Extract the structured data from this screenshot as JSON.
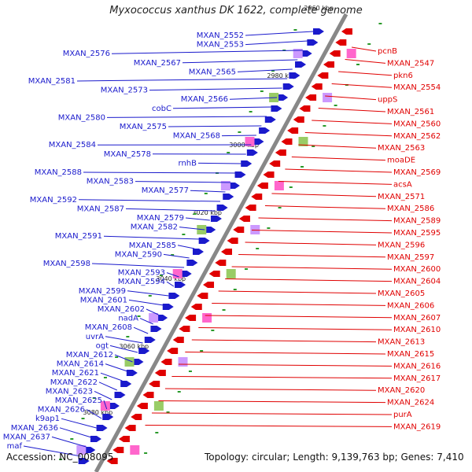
{
  "title": "Myxococcus xanthus DK 1622, complete genome",
  "accession_text": "Accession: NC_008095",
  "topology_text": "Topology: circular; Length: 9,139,763 bp; Genes: 7,410",
  "kbp_marks": [
    "2960 kbp",
    "2980 kbp",
    "3000 kbp",
    "3020 kbp",
    "3040 kbp",
    "3060 kbp",
    "3080 kbp"
  ],
  "left_labels": [
    "MXAN_2552",
    "MXAN_2553",
    "MXAN_2576",
    "MXAN_2567",
    "MXAN_2565",
    "MXAN_2581",
    "MXAN_2573",
    "MXAN_2566",
    "cobC",
    "MXAN_2580",
    "MXAN_2575",
    "MXAN_2568",
    "MXAN_2584",
    "MXAN_2578",
    "rnhB",
    "MXAN_2588",
    "MXAN_2583",
    "MXAN_2577",
    "MXAN_2592",
    "MXAN_2587",
    "MXAN_2579",
    "MXAN_2582",
    "MXAN_2591",
    "MXAN_2585",
    "MXAN_2590",
    "MXAN_2598",
    "MXAN_2593",
    "MXAN_2594",
    "MXAN_2599",
    "MXAN_2601",
    "MXAN_2602",
    "nadA",
    "MXAN_2608",
    "uvrA",
    "ogt",
    "MXAN_2612",
    "MXAN_2614",
    "MXAN_2621",
    "MXAN_2622",
    "MXAN_2623",
    "MXAN_2625",
    "MXAN_2626",
    "k9ap1",
    "MXAN_2636",
    "MXAN_2637",
    "maf"
  ],
  "right_labels": [
    "pcnB",
    "MXAN_2547",
    "pkn6",
    "MXAN_2554",
    "uppS",
    "MXAN_2561",
    "MXAN_2560",
    "MXAN_2562",
    "MXAN_2563",
    "moaDE",
    "MXAN_2569",
    "acsA",
    "MXAN_2571",
    "MXAN_2586",
    "MXAN_2589",
    "MXAN_2595",
    "MXAN_2596",
    "MXAN_2597",
    "MXAN_2600",
    "MXAN_2604",
    "MXAN_2605",
    "MXAN_2606",
    "MXAN_2607",
    "MXAN_2610",
    "MXAN_2613",
    "MXAN_2615",
    "MXAN_2616",
    "MXAN_2617",
    "MXAN_2620",
    "MXAN_2624",
    "purA",
    "MXAN_2619"
  ],
  "colors": {
    "forward": "#1a1acc",
    "reverse": "#e00000",
    "backbone": "#888888",
    "tick": "#2a9a2a"
  }
}
